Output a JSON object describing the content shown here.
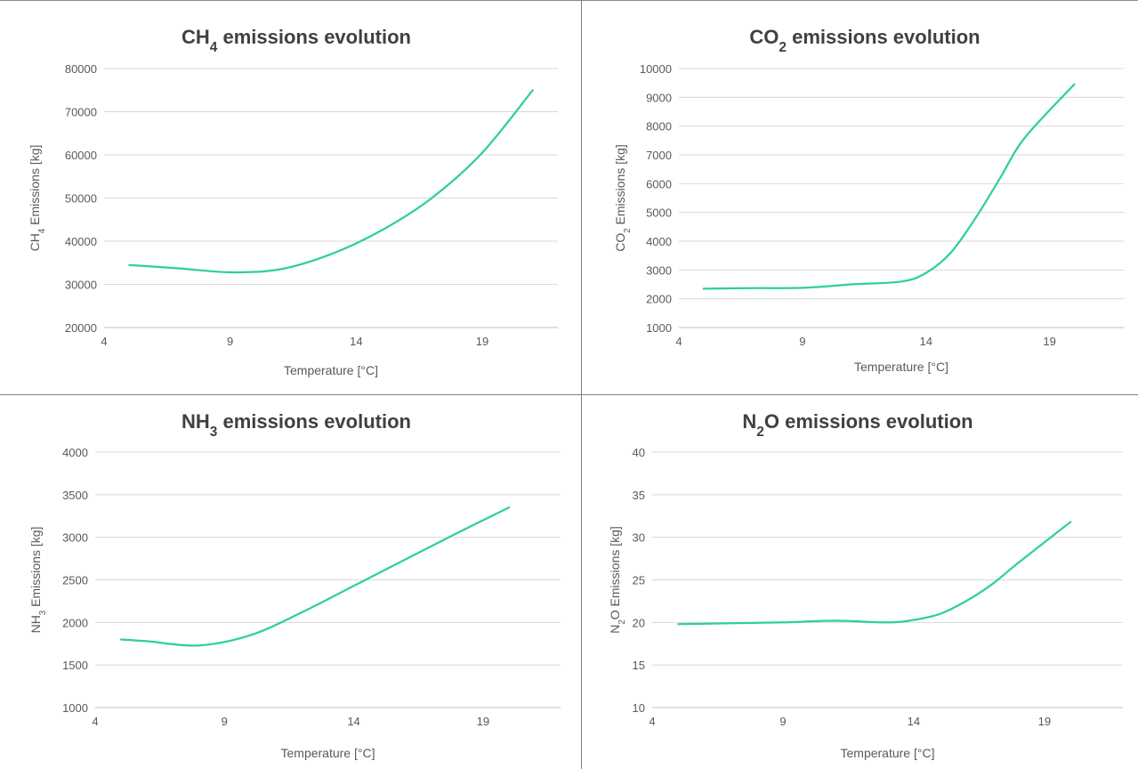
{
  "colors": {
    "series": "#2ecf9f"
  },
  "chart_data": [
    {
      "type": "line",
      "title": {
        "main": "CH",
        "sub": "4",
        "rest": " emissions evolution"
      },
      "ylabel": {
        "main": "CH",
        "sub": "4",
        "rest": " Emissions [kg]"
      },
      "xlabel": "Temperature  [°C]",
      "xlim": [
        4,
        22
      ],
      "xticks": [
        4,
        9,
        14,
        19
      ],
      "ylim": [
        20000,
        80000
      ],
      "yticks": [
        20000,
        30000,
        40000,
        50000,
        60000,
        70000,
        80000
      ],
      "grid": true,
      "series": [
        {
          "x": [
            5,
            7,
            9,
            11,
            13,
            15,
            17,
            19,
            21
          ],
          "y": [
            34500,
            33700,
            32800,
            33500,
            37000,
            42500,
            50000,
            60500,
            75000
          ]
        }
      ]
    },
    {
      "type": "line",
      "title": {
        "main": "CO",
        "sub": "2",
        "rest": " emissions evolution"
      },
      "ylabel": {
        "main": "CO",
        "sub": "2",
        "rest": "  Emissions [kg]"
      },
      "xlabel": "Temperature  [°C]",
      "xlim": [
        4,
        22
      ],
      "xticks": [
        4,
        9,
        14,
        19
      ],
      "ylim": [
        1000,
        10000
      ],
      "yticks": [
        1000,
        2000,
        3000,
        4000,
        5000,
        6000,
        7000,
        8000,
        9000,
        10000
      ],
      "grid": true,
      "series": [
        {
          "x": [
            5,
            7,
            9,
            11,
            13,
            14,
            15,
            16,
            17,
            18,
            20
          ],
          "y": [
            2350,
            2370,
            2380,
            2500,
            2600,
            2900,
            3600,
            4800,
            6200,
            7600,
            9450
          ]
        }
      ]
    },
    {
      "type": "line",
      "title": {
        "main": "NH",
        "sub": "3",
        "rest": " emissions evolution"
      },
      "ylabel": {
        "main": "NH",
        "sub": "3",
        "rest": " Emissions [kg]"
      },
      "xlabel": "Temperature  [°C]",
      "xlim": [
        4,
        22
      ],
      "xticks": [
        4,
        9,
        14,
        19
      ],
      "ylim": [
        1000,
        4000
      ],
      "yticks": [
        1000,
        1500,
        2000,
        2500,
        3000,
        3500,
        4000
      ],
      "grid": true,
      "series": [
        {
          "x": [
            5,
            6,
            8,
            10,
            12,
            14,
            16,
            18,
            20
          ],
          "y": [
            1800,
            1780,
            1730,
            1850,
            2120,
            2430,
            2740,
            3050,
            3350
          ]
        }
      ]
    },
    {
      "type": "line",
      "title": {
        "main": "N",
        "sub": "2",
        "rest": "O emissions evolution"
      },
      "ylabel": {
        "main": "N",
        "sub": "2",
        "rest": "O Emissions [kg]"
      },
      "xlabel": "Temperature  [°C]",
      "xlim": [
        4,
        22
      ],
      "xticks": [
        4,
        9,
        14,
        19
      ],
      "ylim": [
        10,
        40
      ],
      "yticks": [
        10,
        15,
        20,
        25,
        30,
        35,
        40
      ],
      "grid": true,
      "series": [
        {
          "x": [
            5,
            7,
            9,
            11,
            13,
            14,
            15,
            16,
            17,
            18,
            20
          ],
          "y": [
            19.8,
            19.9,
            20.0,
            20.2,
            20.0,
            20.3,
            21.0,
            22.5,
            24.5,
            27.0,
            31.8
          ]
        }
      ]
    }
  ]
}
